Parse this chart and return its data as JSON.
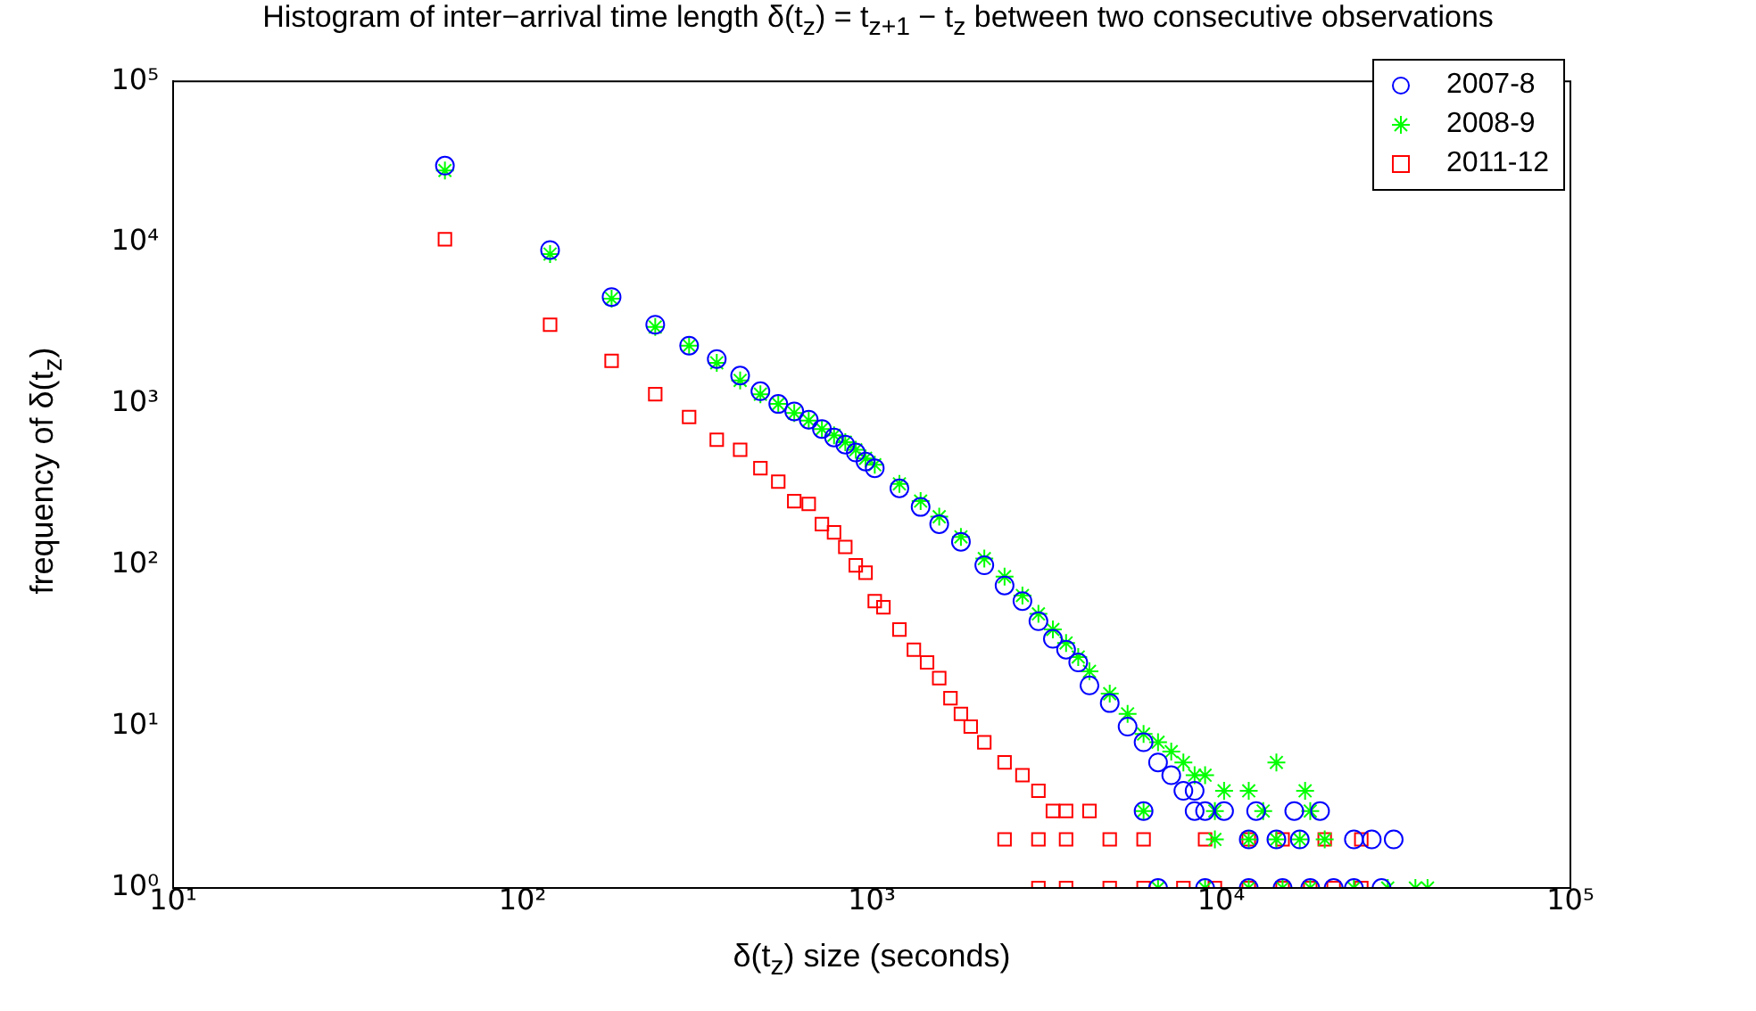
{
  "chart_data": {
    "type": "scatter",
    "title": "Histogram of inter−arrival time length δ(t$_{z}$) = t$_{z+1}$ − t$_{z}$ between two consecutive observations",
    "xlabel": "δ(t$_{z}$) size (seconds)",
    "ylabel": "frequency of δ(t$_{z}$)",
    "log": "xy",
    "grid": false,
    "legend": "top right",
    "xlim": [
      10,
      100000
    ],
    "ylim": [
      1,
      100000
    ],
    "xticks": [
      {
        "value": 10,
        "label": "10¹"
      },
      {
        "value": 100,
        "label": "10²"
      },
      {
        "value": 1000,
        "label": "10³"
      },
      {
        "value": 10000,
        "label": "10⁴"
      },
      {
        "value": 100000,
        "label": "10⁵"
      }
    ],
    "yticks": [
      {
        "value": 1,
        "label": "10⁰"
      },
      {
        "value": 10,
        "label": "10¹"
      },
      {
        "value": 100,
        "label": "10²"
      },
      {
        "value": 1000,
        "label": "10³"
      },
      {
        "value": 10000,
        "label": "10⁴"
      },
      {
        "value": 100000,
        "label": "10⁵"
      }
    ],
    "series": [
      {
        "name": "2007-8",
        "color": "#0000ff",
        "marker": "circle",
        "x": [
          60,
          120,
          180,
          240,
          300,
          360,
          420,
          480,
          540,
          600,
          660,
          720,
          780,
          840,
          900,
          960,
          1020,
          1200,
          1380,
          1560,
          1800,
          2100,
          2400,
          2700,
          3000,
          3300,
          3600,
          3900,
          4200,
          4800,
          5400,
          6000,
          6600,
          7200,
          7800,
          8400,
          9000,
          10200,
          12000,
          14400,
          16800,
          19200,
          24000,
          27000,
          31200,
          6600,
          9000,
          12000,
          15000,
          18000,
          21000,
          24000,
          28800,
          6000,
          8400,
          12600,
          16200
        ],
        "values": [
          30000,
          9000,
          4600,
          3100,
          2300,
          1900,
          1500,
          1200,
          1000,
          900,
          800,
          700,
          620,
          560,
          500,
          440,
          400,
          300,
          230,
          180,
          140,
          100,
          75,
          60,
          45,
          35,
          30,
          25,
          18,
          14,
          10,
          8,
          6,
          5,
          4,
          4,
          3,
          3,
          2,
          2,
          2,
          3,
          2,
          2,
          2,
          1,
          1,
          1,
          1,
          1,
          1,
          1,
          1,
          3,
          3,
          3,
          3
        ]
      },
      {
        "name": "2008-9",
        "color": "#00ff00",
        "marker": "cross",
        "x": [
          60,
          120,
          180,
          240,
          300,
          360,
          420,
          480,
          540,
          600,
          660,
          720,
          780,
          840,
          900,
          960,
          1020,
          1200,
          1380,
          1560,
          1800,
          2100,
          2400,
          2700,
          3000,
          3300,
          3600,
          3900,
          4200,
          4800,
          5400,
          6000,
          6600,
          7200,
          7800,
          8400,
          9000,
          10200,
          12000,
          14400,
          17400,
          9600,
          12000,
          14400,
          16800,
          19800,
          6600,
          9000,
          12000,
          15000,
          18000,
          24000,
          30000,
          36000,
          39000,
          6000,
          9600,
          13200,
          18000
        ],
        "values": [
          28000,
          8500,
          4500,
          3000,
          2300,
          1800,
          1400,
          1150,
          1000,
          880,
          790,
          700,
          640,
          580,
          520,
          460,
          420,
          320,
          250,
          200,
          150,
          110,
          85,
          65,
          50,
          40,
          33,
          27,
          22,
          16,
          12,
          9,
          8,
          7,
          6,
          5,
          5,
          4,
          4,
          6,
          4,
          2,
          2,
          2,
          2,
          2,
          1,
          1,
          1,
          1,
          1,
          1,
          1,
          1,
          1,
          3,
          3,
          3,
          3
        ]
      },
      {
        "name": "2011-12",
        "color": "#ff0000",
        "marker": "square",
        "x": [
          60,
          120,
          180,
          240,
          300,
          360,
          420,
          480,
          540,
          600,
          660,
          720,
          780,
          840,
          900,
          960,
          1020,
          1080,
          1200,
          1320,
          1440,
          1560,
          1680,
          1800,
          1920,
          2100,
          2400,
          2700,
          3000,
          3300,
          3600,
          4200,
          2400,
          3000,
          3600,
          4800,
          6000,
          9000,
          12000,
          15000,
          19800,
          25200,
          3000,
          3600,
          4800,
          6000,
          7800,
          9600,
          12000,
          15000,
          18000,
          21000,
          25200
        ],
        "values": [
          10500,
          3100,
          1850,
          1150,
          830,
          600,
          520,
          400,
          330,
          250,
          240,
          180,
          160,
          130,
          100,
          90,
          60,
          55,
          40,
          30,
          25,
          20,
          15,
          12,
          10,
          8,
          6,
          5,
          4,
          3,
          3,
          3,
          2,
          2,
          2,
          2,
          2,
          2,
          2,
          2,
          2,
          2,
          1,
          1,
          1,
          1,
          1,
          1,
          1,
          1,
          1,
          1,
          1
        ]
      }
    ]
  }
}
